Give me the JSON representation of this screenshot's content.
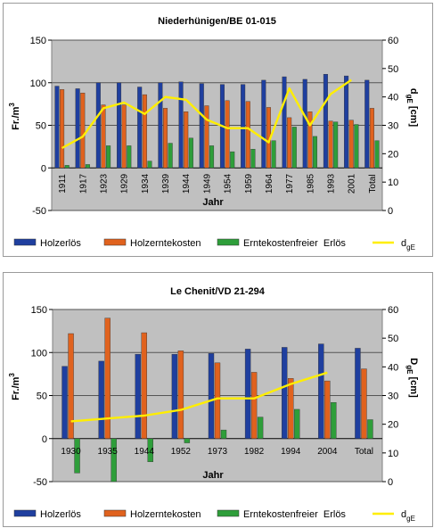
{
  "chart_data": [
    {
      "type": "bar",
      "title": "Niederhünigen/BE 01-015",
      "xlabel": "Jahr",
      "ylabel": "Fr./m3",
      "y2label": "dgE [cm]",
      "ylim": [
        -50,
        150
      ],
      "y2lim": [
        0,
        60
      ],
      "yticks": [
        -50,
        0,
        50,
        100,
        150
      ],
      "y2ticks": [
        0,
        10,
        20,
        30,
        40,
        50,
        60
      ],
      "grid": true,
      "legend_position": "bottom",
      "categories": [
        "1911",
        "1917",
        "1923",
        "1929",
        "1934",
        "1939",
        "1944",
        "1949",
        "1954",
        "1959",
        "1964",
        "1977",
        "1985",
        "1993",
        "2001",
        "Total"
      ],
      "series": [
        {
          "name": "Holzerlös",
          "color": "#1f3f9f",
          "values": [
            96,
            93,
            100,
            100,
            95,
            100,
            101,
            99,
            98,
            98,
            103,
            107,
            104,
            110,
            108,
            103
          ]
        },
        {
          "name": "Holzerntekosten",
          "color": "#e0621e",
          "values": [
            92,
            88,
            74,
            74,
            86,
            70,
            66,
            73,
            79,
            78,
            71,
            59,
            66,
            55,
            56,
            70
          ]
        },
        {
          "name": "Erntekostenfreier  Erlös",
          "color": "#2e9e3a",
          "values": [
            3,
            4,
            26,
            26,
            8,
            29,
            35,
            26,
            19,
            22,
            32,
            48,
            37,
            54,
            51,
            32
          ]
        }
      ],
      "line": {
        "name": "dgE",
        "color": "#ffee00",
        "axis": "right",
        "values": [
          22,
          26,
          36,
          38,
          34,
          40,
          39,
          32,
          29,
          29,
          24,
          43,
          30,
          41,
          46
        ]
      }
    },
    {
      "type": "bar",
      "title": "Le Chenit/VD 21-294",
      "xlabel": "Jahr",
      "ylabel": "Fr./m3",
      "y2label": "DgE [cm]",
      "ylim": [
        -50,
        150
      ],
      "y2lim": [
        0,
        60
      ],
      "yticks": [
        -50,
        0,
        50,
        100,
        150
      ],
      "y2ticks": [
        0,
        10,
        20,
        30,
        40,
        50,
        60
      ],
      "grid": true,
      "legend_position": "bottom",
      "categories": [
        "1930",
        "1935",
        "1944",
        "1952",
        "1973",
        "1982",
        "1994",
        "2004",
        "Total"
      ],
      "series": [
        {
          "name": "Holzerlös",
          "color": "#1f3f9f",
          "values": [
            84,
            90,
            98,
            98,
            99,
            104,
            106,
            110,
            105
          ]
        },
        {
          "name": "Holzerntekosten",
          "color": "#e0621e",
          "values": [
            122,
            140,
            123,
            102,
            88,
            77,
            70,
            67,
            81
          ]
        },
        {
          "name": "Erntekostenfreier  Erlös",
          "color": "#2e9e3a",
          "values": [
            -40,
            -50,
            -27,
            -5,
            10,
            25,
            34,
            42,
            22
          ]
        }
      ],
      "line": {
        "name": "dgE",
        "color": "#ffee00",
        "axis": "right",
        "values": [
          21,
          22,
          23,
          25,
          29,
          29,
          34,
          38
        ]
      }
    }
  ]
}
